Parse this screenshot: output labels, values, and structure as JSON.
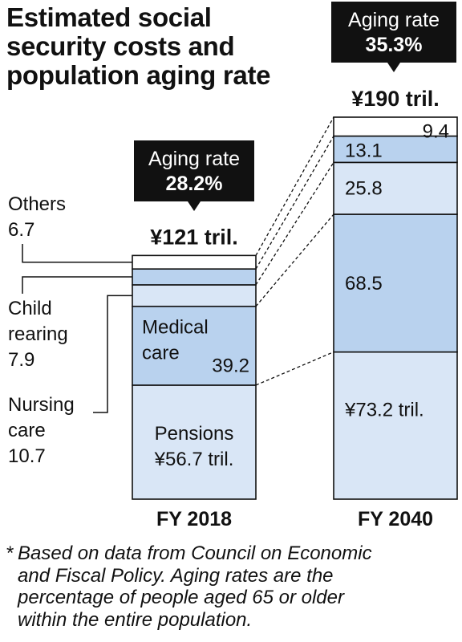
{
  "title_lines": [
    "Estimated social",
    "security costs and",
    "population aging rate"
  ],
  "footnote": {
    "star": "*",
    "lines": [
      "Based on data from Council on Economic",
      "and Fiscal Policy. Aging rates are the",
      "percentage of people aged 65 or older",
      "within the entire population."
    ]
  },
  "chart_data": {
    "type": "bar",
    "stacked": true,
    "unit": "¥ tril.",
    "categories": [
      "FY 2018",
      "FY 2040"
    ],
    "totals": [
      121,
      190
    ],
    "total_labels": [
      "¥121 tril.",
      "¥190 tril."
    ],
    "aging_rate": [
      {
        "label": "Aging rate",
        "value": "28.2%"
      },
      {
        "label": "Aging rate",
        "value": "35.3%"
      }
    ],
    "series": [
      {
        "name": "Pensions",
        "values": [
          56.7,
          73.2
        ],
        "color": "#d9e6f6"
      },
      {
        "name": "Medical care",
        "values": [
          39.2,
          68.5
        ],
        "color": "#b9d2ee"
      },
      {
        "name": "Nursing care",
        "values": [
          10.7,
          25.8
        ],
        "color": "#d9e6f6"
      },
      {
        "name": "Child rearing",
        "values": [
          7.9,
          13.1
        ],
        "color": "#b9d2ee"
      },
      {
        "name": "Others",
        "values": [
          6.7,
          9.4
        ],
        "color": "#ffffff"
      }
    ],
    "segment_labels_2018": {
      "pensions": [
        "Pensions",
        "¥56.7 tril."
      ],
      "medical": [
        "Medical",
        "care",
        "39.2"
      ]
    },
    "segment_labels_2040": {
      "pensions": "¥73.2 tril.",
      "medical": "68.5",
      "nursing": "25.8",
      "child": "13.1",
      "others": "9.4"
    },
    "side_labels": {
      "others": [
        "Others",
        "6.7"
      ],
      "child": [
        "Child",
        "rearing",
        "7.9"
      ],
      "nursing": [
        "Nursing",
        "care",
        "10.7"
      ]
    }
  }
}
